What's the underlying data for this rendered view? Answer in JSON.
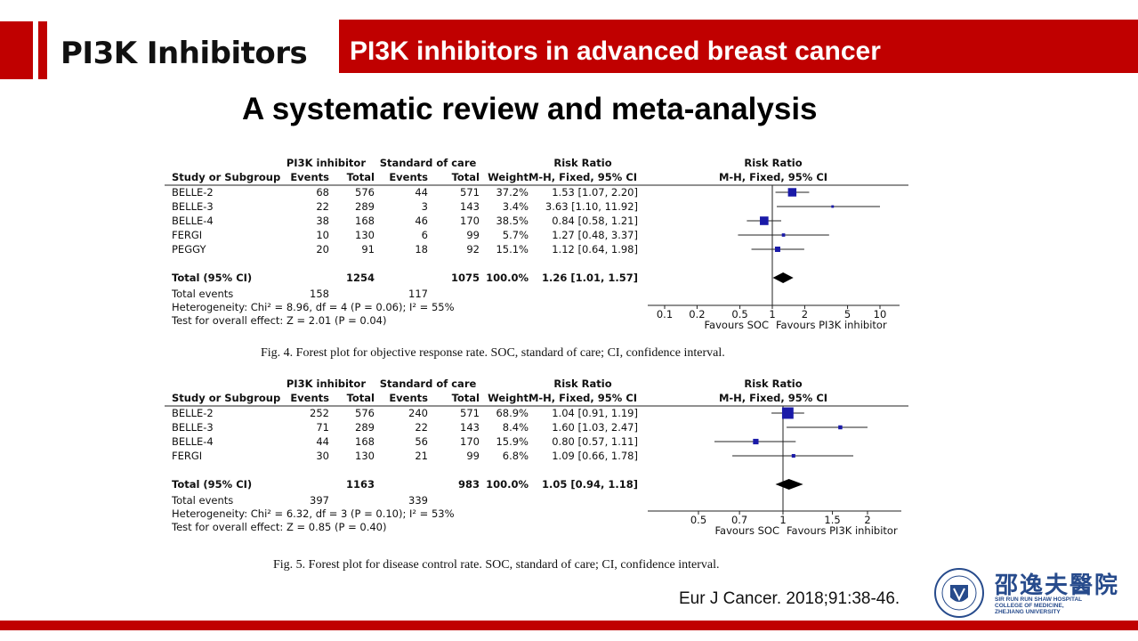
{
  "header": {
    "section_title": "PI3K Inhibitors",
    "banner_title": "PI3K inhibitors in advanced breast cancer",
    "subtitle": "A systematic review and meta-analysis"
  },
  "colors": {
    "accent": "#c00000",
    "marker": "#1a1aa8"
  },
  "chart_data": [
    {
      "type": "forest",
      "group_labels": {
        "treatment": "PI3K inhibitor",
        "control": "Standard of care"
      },
      "columns": [
        "Study or Subgroup",
        "Events",
        "Total",
        "Events",
        "Total",
        "Weight",
        "M-H, Fixed, 95% CI"
      ],
      "ratio_label": "Risk Ratio",
      "plot_header": "M-H, Fixed, 95% CI",
      "studies": [
        {
          "name": "BELLE-2",
          "t_events": "68",
          "t_total": "576",
          "c_events": "44",
          "c_total": "571",
          "weight": "37.2%",
          "ci_text": "1.53 [1.07, 2.20]",
          "rr": 1.53,
          "lo": 1.07,
          "hi": 2.2,
          "w": 37.2
        },
        {
          "name": "BELLE-3",
          "t_events": "22",
          "t_total": "289",
          "c_events": "3",
          "c_total": "143",
          "weight": "3.4%",
          "ci_text": "3.63 [1.10, 11.92]",
          "rr": 3.63,
          "lo": 1.1,
          "hi": 11.92,
          "w": 3.4
        },
        {
          "name": "BELLE-4",
          "t_events": "38",
          "t_total": "168",
          "c_events": "46",
          "c_total": "170",
          "weight": "38.5%",
          "ci_text": "0.84 [0.58, 1.21]",
          "rr": 0.84,
          "lo": 0.58,
          "hi": 1.21,
          "w": 38.5
        },
        {
          "name": "FERGI",
          "t_events": "10",
          "t_total": "130",
          "c_events": "6",
          "c_total": "99",
          "weight": "5.7%",
          "ci_text": "1.27 [0.48, 3.37]",
          "rr": 1.27,
          "lo": 0.48,
          "hi": 3.37,
          "w": 5.7
        },
        {
          "name": "PEGGY",
          "t_events": "20",
          "t_total": "91",
          "c_events": "18",
          "c_total": "92",
          "weight": "15.1%",
          "ci_text": "1.12 [0.64, 1.98]",
          "rr": 1.12,
          "lo": 0.64,
          "hi": 1.98,
          "w": 15.1
        }
      ],
      "total": {
        "name": "Total (95% CI)",
        "t_total": "1254",
        "c_total": "1075",
        "weight": "100.0%",
        "ci_text": "1.26 [1.01, 1.57]",
        "rr": 1.26,
        "lo": 1.01,
        "hi": 1.57
      },
      "total_events": {
        "label": "Total events",
        "t": "158",
        "c": "117"
      },
      "heterogeneity": "Heterogeneity: Chi² = 8.96, df = 4 (P = 0.06); I² = 55%",
      "overall_effect": "Test for overall effect: Z = 2.01 (P = 0.04)",
      "scale": "log",
      "ticks": [
        "0.1",
        "0.2",
        "0.5",
        "1",
        "2",
        "5",
        "10"
      ],
      "xlim": [
        0.1,
        10
      ],
      "favours_left": "Favours SOC",
      "favours_right": "Favours PI3K inhibitor",
      "caption": "Fig. 4. Forest plot for objective response rate. SOC, standard of care; CI, confidence interval."
    },
    {
      "type": "forest",
      "group_labels": {
        "treatment": "PI3K inhibitor",
        "control": "Standard of care"
      },
      "columns": [
        "Study or Subgroup",
        "Events",
        "Total",
        "Events",
        "Total",
        "Weight",
        "M-H, Fixed, 95% CI"
      ],
      "ratio_label": "Risk Ratio",
      "plot_header": "M-H, Fixed, 95% CI",
      "studies": [
        {
          "name": "BELLE-2",
          "t_events": "252",
          "t_total": "576",
          "c_events": "240",
          "c_total": "571",
          "weight": "68.9%",
          "ci_text": "1.04 [0.91, 1.19]",
          "rr": 1.04,
          "lo": 0.91,
          "hi": 1.19,
          "w": 68.9
        },
        {
          "name": "BELLE-3",
          "t_events": "71",
          "t_total": "289",
          "c_events": "22",
          "c_total": "143",
          "weight": "8.4%",
          "ci_text": "1.60 [1.03, 2.47]",
          "rr": 1.6,
          "lo": 1.03,
          "hi": 2.47,
          "w": 8.4
        },
        {
          "name": "BELLE-4",
          "t_events": "44",
          "t_total": "168",
          "c_events": "56",
          "c_total": "170",
          "weight": "15.9%",
          "ci_text": "0.80 [0.57, 1.11]",
          "rr": 0.8,
          "lo": 0.57,
          "hi": 1.11,
          "w": 15.9
        },
        {
          "name": "FERGI",
          "t_events": "30",
          "t_total": "130",
          "c_events": "21",
          "c_total": "99",
          "weight": "6.8%",
          "ci_text": "1.09 [0.66, 1.78]",
          "rr": 1.09,
          "lo": 0.66,
          "hi": 1.78,
          "w": 6.8
        }
      ],
      "total": {
        "name": "Total (95% CI)",
        "t_total": "1163",
        "c_total": "983",
        "weight": "100.0%",
        "ci_text": "1.05 [0.94, 1.18]",
        "rr": 1.05,
        "lo": 0.94,
        "hi": 1.18
      },
      "total_events": {
        "label": "Total events",
        "t": "397",
        "c": "339"
      },
      "heterogeneity": "Heterogeneity: Chi² = 6.32, df = 3 (P = 0.10); I² = 53%",
      "overall_effect": "Test for overall effect: Z = 0.85 (P = 0.40)",
      "scale": "linear",
      "ticks": [
        "0.5",
        "0.7",
        "1",
        "1.5",
        "2"
      ],
      "xlim": [
        0.5,
        2
      ],
      "favours_left": "Favours SOC",
      "favours_right": "Favours PI3K inhibitor",
      "caption": "Fig. 5. Forest plot for disease control rate. SOC, standard of care; CI, confidence interval."
    }
  ],
  "citation": "Eur J Cancer. 2018;91:38-46.",
  "logo": {
    "chinese_name": "邵逸夫醫院",
    "english_name": "SIR RUN RUN SHAW HOSPITAL\nCOLLEGE OF MEDICINE,\nZHEJIANG UNIVERSITY",
    "icon": "hospital-emblem-icon"
  }
}
